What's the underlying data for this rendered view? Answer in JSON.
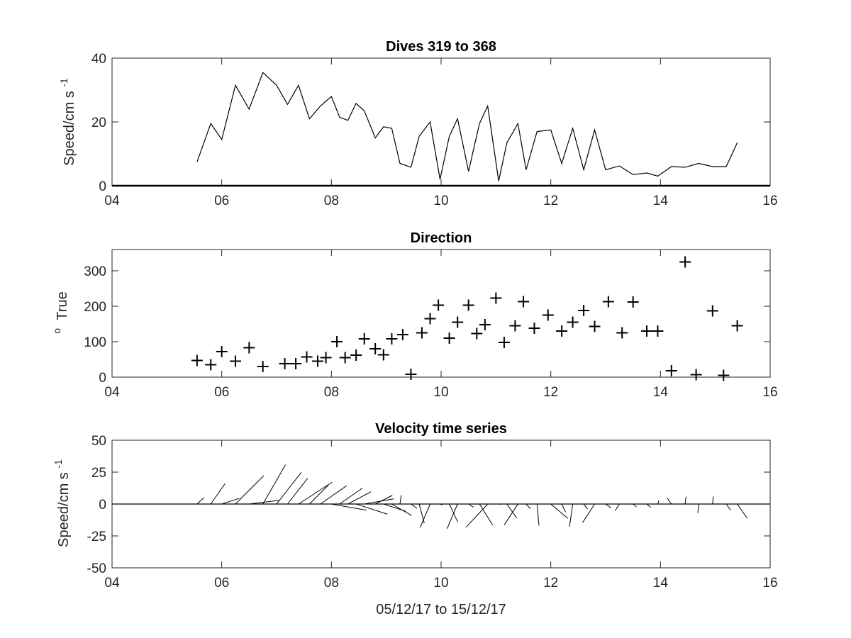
{
  "chart_data": [
    {
      "type": "line",
      "title": "Dives 319 to 368",
      "ylabel": "Speed/cm s",
      "ylabel_superscript": "-1",
      "xlim": [
        4,
        16
      ],
      "ylim": [
        0,
        40
      ],
      "xticks": [
        4,
        6,
        8,
        10,
        12,
        14,
        16
      ],
      "xticklabels": [
        "04",
        "06",
        "08",
        "10",
        "12",
        "14",
        "16"
      ],
      "yticks": [
        0,
        20,
        40
      ],
      "yticklabels": [
        "0",
        "20",
        "40"
      ],
      "grid": false,
      "series": [
        {
          "x": [
            5.55,
            5.8,
            6.0,
            6.25,
            6.5,
            6.75,
            7.0,
            7.2,
            7.4,
            7.6,
            7.8,
            8.0,
            8.15,
            8.3,
            8.45,
            8.6,
            8.8,
            8.95,
            9.1,
            9.25,
            9.45,
            9.6,
            9.8,
            9.98,
            10.15,
            10.3,
            10.5,
            10.7,
            10.85,
            11.05,
            11.2,
            11.4,
            11.55,
            11.75,
            12.0,
            12.2,
            12.4,
            12.6,
            12.8,
            13.0,
            13.25,
            13.5,
            13.75,
            13.95,
            14.2,
            14.45,
            14.7,
            14.95,
            15.2,
            15.4
          ],
          "y": [
            7.5,
            19.5,
            14.5,
            31.5,
            24,
            35.5,
            31.5,
            25.5,
            31.5,
            21,
            25,
            28,
            21.5,
            20.5,
            25.8,
            23.5,
            15,
            18.5,
            18,
            7,
            5.8,
            15.5,
            20,
            2,
            15.5,
            21,
            4.5,
            19.5,
            25,
            1.5,
            13.5,
            19.5,
            5,
            17,
            17.5,
            7,
            18,
            5,
            17.5,
            5,
            6.2,
            3.5,
            4,
            3,
            6,
            5.8,
            7,
            6,
            6,
            13.5
          ],
          "color": "#000000"
        }
      ]
    },
    {
      "type": "scatter",
      "title": "Direction",
      "ylabel": "True",
      "ylabel_prefix": "o",
      "xlim": [
        4,
        16
      ],
      "ylim": [
        0,
        360
      ],
      "xticks": [
        4,
        6,
        8,
        10,
        12,
        14,
        16
      ],
      "xticklabels": [
        "04",
        "06",
        "08",
        "10",
        "12",
        "14",
        "16"
      ],
      "yticks": [
        0,
        100,
        200,
        300
      ],
      "yticklabels": [
        "0",
        "100",
        "200",
        "300"
      ],
      "grid": false,
      "marker": "+",
      "series": [
        {
          "x": [
            5.55,
            5.8,
            6.0,
            6.25,
            6.5,
            6.75,
            7.15,
            7.35,
            7.55,
            7.75,
            7.9,
            8.1,
            8.25,
            8.45,
            8.6,
            8.8,
            8.95,
            9.1,
            9.3,
            9.45,
            9.65,
            9.8,
            9.95,
            10.15,
            10.3,
            10.5,
            10.65,
            10.8,
            11.0,
            11.15,
            11.35,
            11.5,
            11.7,
            11.95,
            12.2,
            12.4,
            12.6,
            12.8,
            13.05,
            13.3,
            13.5,
            13.75,
            13.95,
            14.2,
            14.45,
            14.65,
            14.95,
            15.15,
            15.4
          ],
          "y": [
            47,
            35,
            72,
            45,
            83,
            30,
            38,
            38,
            57,
            45,
            55,
            100,
            55,
            62,
            108,
            80,
            63,
            108,
            120,
            8,
            125,
            165,
            203,
            110,
            155,
            203,
            123,
            148,
            223,
            98,
            145,
            213,
            138,
            175,
            130,
            155,
            188,
            143,
            213,
            125,
            212,
            130,
            130,
            18,
            325,
            7,
            187,
            5,
            145
          ],
          "color": "#000000"
        }
      ]
    },
    {
      "type": "stick",
      "title": "Velocity time series",
      "ylabel": "Speed/cm s",
      "ylabel_superscript": "-1",
      "xlabel": "05/12/17 to 15/12/17",
      "xlim": [
        4,
        16
      ],
      "ylim": [
        -50,
        50
      ],
      "xticks": [
        4,
        6,
        8,
        10,
        12,
        14,
        16
      ],
      "xticklabels": [
        "04",
        "06",
        "08",
        "10",
        "12",
        "14",
        "16"
      ],
      "yticks": [
        -50,
        -25,
        0,
        25,
        50
      ],
      "yticklabels": [
        "-50",
        "-25",
        "0",
        "25",
        "50"
      ],
      "grid": false,
      "sticks": {
        "x": [
          5.55,
          5.8,
          6.0,
          6.25,
          6.5,
          6.75,
          7.0,
          7.2,
          7.4,
          7.6,
          7.8,
          8.0,
          8.15,
          8.3,
          8.45,
          8.6,
          8.8,
          8.95,
          9.1,
          9.25,
          9.45,
          9.6,
          9.8,
          9.98,
          10.15,
          10.3,
          10.5,
          10.7,
          10.85,
          11.05,
          11.2,
          11.4,
          11.55,
          11.75,
          12.0,
          12.2,
          12.4,
          12.6,
          12.8,
          13.0,
          13.25,
          13.5,
          13.75,
          13.95,
          14.2,
          14.45,
          14.7,
          14.95,
          15.2,
          15.4
        ],
        "speed": [
          7.5,
          19.5,
          14.5,
          31.5,
          24,
          35.5,
          31.5,
          25.5,
          31.5,
          21,
          25,
          28,
          21.5,
          20.5,
          25.8,
          23.5,
          15,
          18.5,
          18,
          7,
          5.8,
          15.5,
          20,
          2,
          15.5,
          21,
          4.5,
          19.5,
          25,
          1.5,
          13.5,
          19.5,
          5,
          17,
          17.5,
          7,
          18,
          5,
          17.5,
          5,
          6.2,
          3.5,
          4,
          3,
          6,
          5.8,
          7,
          6,
          6,
          13.5
        ],
        "direction": [
          47,
          35,
          72,
          45,
          83,
          30,
          38,
          38,
          57,
          45,
          55,
          100,
          55,
          62,
          108,
          80,
          63,
          108,
          120,
          8,
          125,
          165,
          203,
          110,
          155,
          203,
          123,
          148,
          223,
          98,
          145,
          213,
          138,
          175,
          130,
          155,
          188,
          143,
          213,
          125,
          212,
          130,
          130,
          18,
          325,
          7,
          187,
          5,
          145,
          145
        ],
        "color": "#000000"
      }
    }
  ]
}
